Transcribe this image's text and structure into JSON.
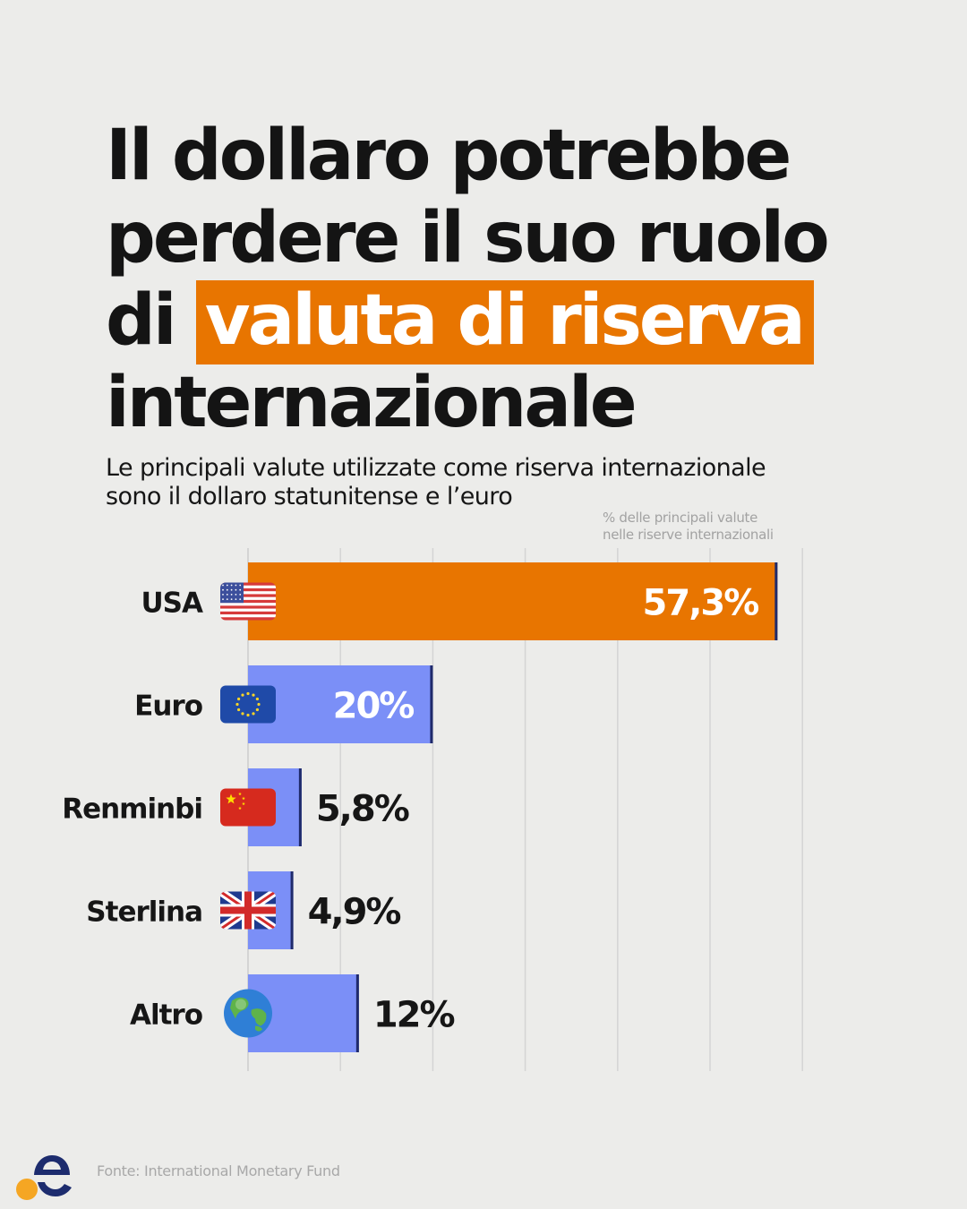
{
  "headline": {
    "line1": "Il dollaro potrebbe",
    "line2": "perdere il suo ruolo",
    "line3_prefix": "di",
    "highlight": "valuta di riserva",
    "line4": "internazionale"
  },
  "subtitle": {
    "line1": "Le principali valute utilizzate come riserva internazionale",
    "line2": "sono il dollaro statunitense e l’euro"
  },
  "unit_note": {
    "line1": "% delle principali valute",
    "line2": "nelle riserve internazionali"
  },
  "chart_data": {
    "type": "bar",
    "orientation": "horizontal",
    "categories": [
      "USA",
      "Euro",
      "Renminbi",
      "Sterlina",
      "Altro"
    ],
    "values": [
      57.3,
      20,
      5.8,
      4.9,
      12
    ],
    "labels": [
      "57,3%",
      "20%",
      "5,8%",
      "4,9%",
      "12%"
    ],
    "icons": [
      "us-flag-icon",
      "eu-flag-icon",
      "china-flag-icon",
      "uk-flag-icon",
      "globe-icon"
    ],
    "xlim": [
      0,
      60
    ],
    "grid": true,
    "colors": {
      "highlight": "#e87500",
      "bar": "#7b8ff7",
      "bar_edge": "#1f2a6b",
      "grid": "#d4d4d4"
    }
  },
  "source": "Fonte: International Monetary Fund",
  "colors": {
    "background": "#ececea",
    "accent": "#e87500",
    "logo_letter": "#1d2c6e",
    "logo_dot": "#f5a623"
  }
}
